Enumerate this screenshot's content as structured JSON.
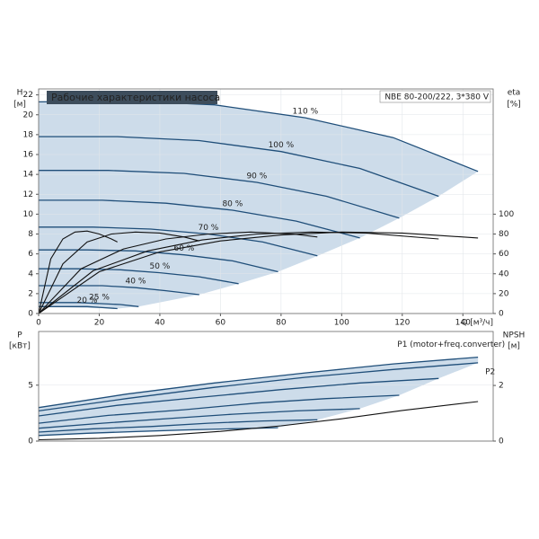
{
  "chart_data": [
    {
      "type": "line",
      "title": "Рабочие характеристики насоса",
      "subtitle": "NBE 80-200/222, 3*380 V",
      "ylabel": "H",
      "ylabel_unit": "[м]",
      "y2label": "eta",
      "y2label_unit": "[%]",
      "xlabel": "Q [м³/ч]",
      "xlim": [
        0,
        150
      ],
      "xticks": [
        0,
        20,
        40,
        60,
        80,
        100,
        120,
        140
      ],
      "ylim": [
        0,
        22.6
      ],
      "yticks": [
        0,
        2,
        4,
        6,
        8,
        10,
        12,
        14,
        16,
        18,
        20,
        22
      ],
      "y2lim": [
        0,
        226
      ],
      "y2ticks": [
        0,
        20,
        40,
        60,
        80,
        100
      ],
      "grid": true,
      "shade": true,
      "series": [
        {
          "name": "110 %",
          "color": "#1f4e79",
          "x": [
            0,
            29,
            58,
            88,
            117,
            145
          ],
          "values": [
            21.3,
            21.4,
            21.0,
            19.7,
            17.7,
            14.3
          ]
        },
        {
          "name": "100 %",
          "color": "#1f4e79",
          "x": [
            0,
            26,
            53,
            80,
            106,
            132
          ],
          "values": [
            17.8,
            17.8,
            17.4,
            16.3,
            14.6,
            11.8
          ]
        },
        {
          "name": "90 %",
          "color": "#1f4e79",
          "x": [
            0,
            23,
            48,
            72,
            95,
            119
          ],
          "values": [
            14.4,
            14.4,
            14.1,
            13.2,
            11.8,
            9.6
          ]
        },
        {
          "name": "80 %",
          "color": "#1f4e79",
          "x": [
            0,
            21,
            42,
            64,
            85,
            106
          ],
          "values": [
            11.4,
            11.4,
            11.1,
            10.4,
            9.3,
            7.6
          ]
        },
        {
          "name": "70 %",
          "color": "#1f4e79",
          "x": [
            0,
            18,
            37,
            56,
            74,
            92
          ],
          "values": [
            8.7,
            8.7,
            8.5,
            8.0,
            7.2,
            5.8
          ]
        },
        {
          "name": "60 %",
          "color": "#1f4e79",
          "x": [
            0,
            16,
            32,
            48,
            64,
            79
          ],
          "values": [
            6.4,
            6.4,
            6.3,
            5.9,
            5.3,
            4.2
          ]
        },
        {
          "name": "50 %",
          "color": "#1f4e79",
          "x": [
            0,
            13,
            27,
            40,
            53,
            66
          ],
          "values": [
            4.5,
            4.5,
            4.4,
            4.1,
            3.7,
            3.0
          ]
        },
        {
          "name": "40 %",
          "color": "#1f4e79",
          "x": [
            0,
            10,
            21,
            32,
            42,
            53
          ],
          "values": [
            2.8,
            2.8,
            2.8,
            2.6,
            2.3,
            1.9
          ]
        },
        {
          "name": "25 %",
          "color": "#1f4e79",
          "x": [
            0,
            7,
            13,
            20,
            27,
            33
          ],
          "values": [
            1.1,
            1.1,
            1.1,
            1.0,
            0.9,
            0.7
          ]
        },
        {
          "name": "20 %",
          "color": "#1f4e79",
          "x": [
            0,
            5,
            11,
            16,
            21,
            26
          ],
          "values": [
            0.7,
            0.7,
            0.7,
            0.7,
            0.6,
            0.5
          ]
        },
        {
          "color": "#111111",
          "axis": "y2",
          "x": [
            0,
            20,
            40,
            60,
            80,
            100,
            120,
            145
          ],
          "values": [
            0,
            42,
            62,
            73,
            79,
            82,
            81,
            76
          ]
        },
        {
          "color": "#111111",
          "axis": "y2",
          "x": [
            0,
            18,
            36,
            54,
            72,
            90,
            108,
            132
          ],
          "values": [
            0,
            43,
            63,
            74,
            80,
            82,
            81,
            75
          ]
        },
        {
          "color": "#111111",
          "axis": "y2",
          "x": [
            0,
            14,
            28,
            42,
            56,
            70,
            84,
            92
          ],
          "values": [
            0,
            45,
            65,
            75,
            80,
            82,
            80,
            77
          ]
        },
        {
          "color": "#111111",
          "axis": "y2",
          "x": [
            0,
            8,
            16,
            24,
            32,
            40,
            48,
            53
          ],
          "values": [
            0,
            50,
            72,
            80,
            82,
            81,
            77,
            73
          ]
        },
        {
          "color": "#111111",
          "axis": "y2",
          "x": [
            0,
            4,
            8,
            12,
            16,
            20,
            24,
            26
          ],
          "values": [
            0,
            55,
            75,
            82,
            83,
            80,
            75,
            72
          ]
        }
      ]
    },
    {
      "type": "line",
      "ylabel": "P",
      "ylabel_unit": "[кВт]",
      "y2label": "NPSH",
      "y2label_unit": "[м]",
      "xlim": [
        0,
        150
      ],
      "ylim": [
        0,
        9.8
      ],
      "yticks": [
        0,
        5
      ],
      "y2lim": [
        0,
        3.94
      ],
      "y2ticks": [
        0,
        2
      ],
      "grid": true,
      "shade": true,
      "series": [
        {
          "name": "P1 (motor+freq.converter)",
          "color": "#1f4e79",
          "x": [
            0,
            29,
            58,
            88,
            117,
            145
          ],
          "values": [
            3.0,
            4.2,
            5.2,
            6.1,
            6.9,
            7.5
          ]
        },
        {
          "name": "P2",
          "color": "#1f4e79",
          "x": [
            0,
            29,
            58,
            88,
            117,
            145
          ],
          "values": [
            2.7,
            3.8,
            4.8,
            5.7,
            6.4,
            7.0
          ]
        },
        {
          "color": "#1f4e79",
          "x": [
            0,
            26,
            53,
            80,
            106,
            132
          ],
          "values": [
            2.25,
            3.2,
            3.9,
            4.6,
            5.2,
            5.6
          ]
        },
        {
          "color": "#1f4e79",
          "x": [
            0,
            23,
            48,
            72,
            95,
            119
          ],
          "values": [
            1.6,
            2.3,
            2.8,
            3.4,
            3.8,
            4.1
          ]
        },
        {
          "color": "#1f4e79",
          "x": [
            0,
            21,
            42,
            64,
            85,
            106
          ],
          "values": [
            1.15,
            1.6,
            2.0,
            2.4,
            2.7,
            2.9
          ]
        },
        {
          "color": "#1f4e79",
          "x": [
            0,
            18,
            37,
            56,
            74,
            92
          ],
          "values": [
            0.8,
            1.1,
            1.3,
            1.6,
            1.8,
            1.9
          ]
        },
        {
          "color": "#1f4e79",
          "x": [
            0,
            16,
            32,
            48,
            64,
            79
          ],
          "values": [
            0.5,
            0.7,
            0.85,
            1.0,
            1.1,
            1.2
          ]
        },
        {
          "color": "#111111",
          "axis": "y2",
          "x": [
            0,
            20,
            40,
            60,
            80,
            100,
            120,
            145
          ],
          "values": [
            0.05,
            0.1,
            0.2,
            0.35,
            0.55,
            0.8,
            1.1,
            1.42
          ]
        }
      ]
    }
  ]
}
